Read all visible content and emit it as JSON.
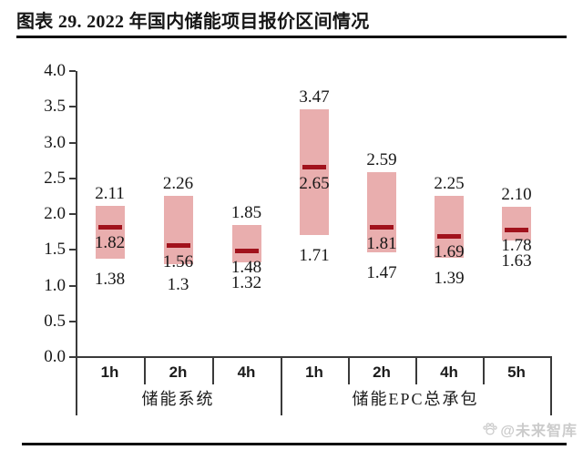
{
  "title": "图表 29. 2022 年国内储能项目报价区间情况",
  "watermark": {
    "text": "@未来智库",
    "icon": "paw-icon"
  },
  "chart_data": {
    "type": "range-bar",
    "title": "2022 年国内储能项目报价区间情况",
    "ylim": [
      0.0,
      4.0
    ],
    "ytick_step": 0.5,
    "ytick_labels": [
      "0.0",
      "0.5",
      "1.0",
      "1.5",
      "2.0",
      "2.5",
      "3.0",
      "3.5",
      "4.0"
    ],
    "grid": false,
    "legend": "none",
    "groups": [
      {
        "label": "储能系统",
        "categories": [
          "1h",
          "2h",
          "4h"
        ]
      },
      {
        "label": "储能EPC总承包",
        "categories": [
          "1h",
          "2h",
          "4h",
          "5h"
        ]
      }
    ],
    "bars": [
      {
        "group": "储能系统",
        "category": "1h",
        "min": 1.38,
        "mid": 1.82,
        "max": 2.11,
        "labels": {
          "min": "1.38",
          "mid": "1.82",
          "max": "2.11"
        }
      },
      {
        "group": "储能系统",
        "category": "2h",
        "min": 1.3,
        "mid": 1.56,
        "max": 2.26,
        "labels": {
          "min": "1.3",
          "mid": "1.56",
          "max": "2.26"
        }
      },
      {
        "group": "储能系统",
        "category": "4h",
        "min": 1.32,
        "mid": 1.48,
        "max": 1.85,
        "labels": {
          "min": "1.32",
          "mid": "1.48",
          "max": "1.85"
        }
      },
      {
        "group": "储能EPC总承包",
        "category": "1h",
        "min": 1.71,
        "mid": 2.65,
        "max": 3.47,
        "labels": {
          "min": "1.71",
          "mid": "2.65",
          "max": "3.47"
        }
      },
      {
        "group": "储能EPC总承包",
        "category": "2h",
        "min": 1.47,
        "mid": 1.81,
        "max": 2.59,
        "labels": {
          "min": "1.47",
          "mid": "1.81",
          "max": "2.59"
        }
      },
      {
        "group": "储能EPC总承包",
        "category": "4h",
        "min": 1.39,
        "mid": 1.69,
        "max": 2.25,
        "labels": {
          "min": "1.39",
          "mid": "1.69",
          "max": "2.25"
        }
      },
      {
        "group": "储能EPC总承包",
        "category": "5h",
        "min": 1.63,
        "mid": 1.78,
        "max": 2.1,
        "labels": {
          "min": "1.63",
          "mid": "1.78",
          "max": "2.10"
        }
      }
    ],
    "colors": {
      "bar_fill": "#e9aeae",
      "mid_dash": "#a1121c",
      "axis_line": "#3a3a3a",
      "label_text": "#161616"
    }
  }
}
